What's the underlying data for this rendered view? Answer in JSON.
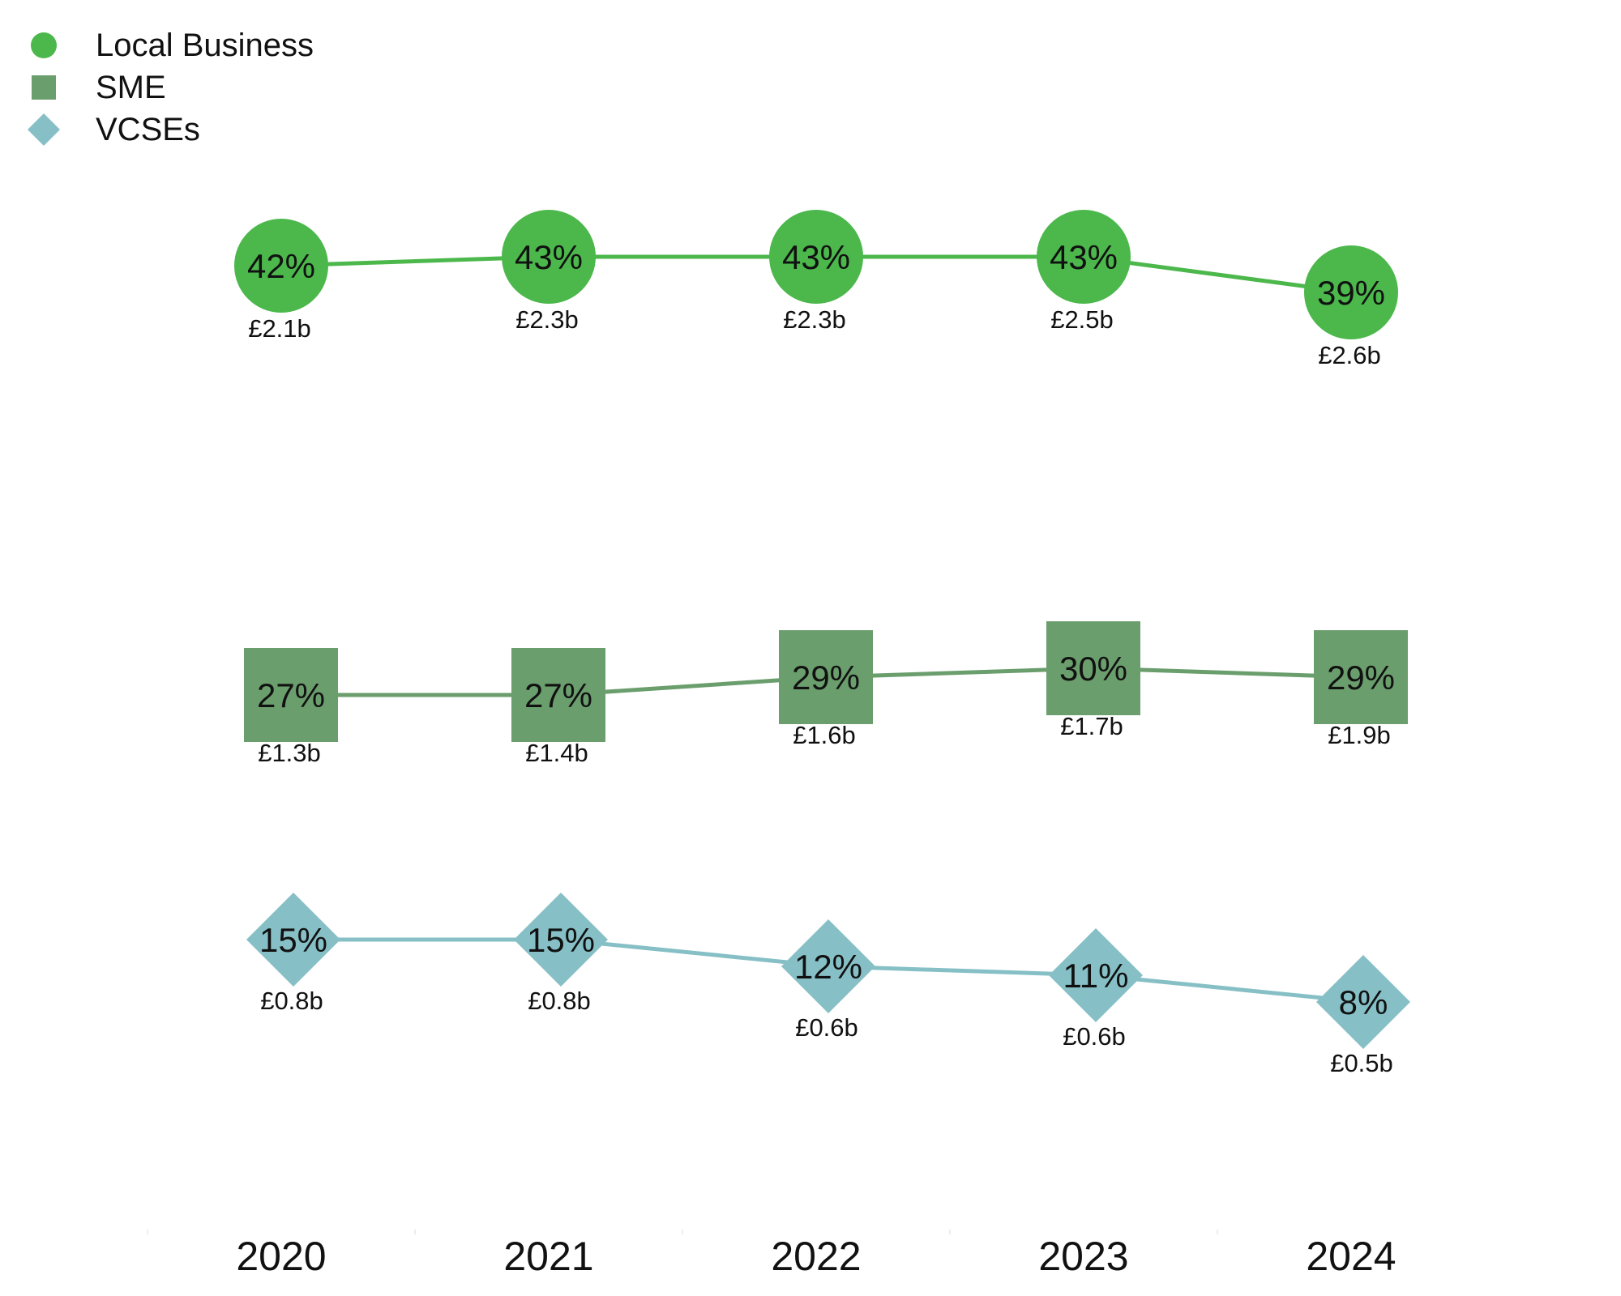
{
  "chart_data": {
    "type": "line",
    "title": "",
    "xlabel": "",
    "ylabel": "",
    "categories": [
      "2020",
      "2021",
      "2022",
      "2023",
      "2024"
    ],
    "legend_position": "top-left",
    "grid": false,
    "series": [
      {
        "name": "Local Business",
        "marker": "circle",
        "color": "#4cb84c",
        "values": [
          42,
          43,
          43,
          43,
          39
        ],
        "percent_labels": [
          "42%",
          "43%",
          "43%",
          "43%",
          "39%"
        ],
        "value_labels": [
          "£2.1b",
          "£2.3b",
          "£2.3b",
          "£2.5b",
          "£2.6b"
        ]
      },
      {
        "name": "SME",
        "marker": "square",
        "color": "#6b9e6d",
        "values": [
          27,
          27,
          29,
          30,
          29
        ],
        "percent_labels": [
          "27%",
          "27%",
          "29%",
          "30%",
          "29%"
        ],
        "value_labels": [
          "£1.3b",
          "£1.4b",
          "£1.6b",
          "£1.7b",
          "£1.9b"
        ]
      },
      {
        "name": "VCSEs",
        "marker": "diamond",
        "color": "#86c0c6",
        "values": [
          15,
          15,
          12,
          11,
          8
        ],
        "percent_labels": [
          "15%",
          "15%",
          "12%",
          "11%",
          "8%"
        ],
        "value_labels": [
          "£0.8b",
          "£0.8b",
          "£0.6b",
          "£0.6b",
          "£0.5b"
        ]
      }
    ]
  }
}
